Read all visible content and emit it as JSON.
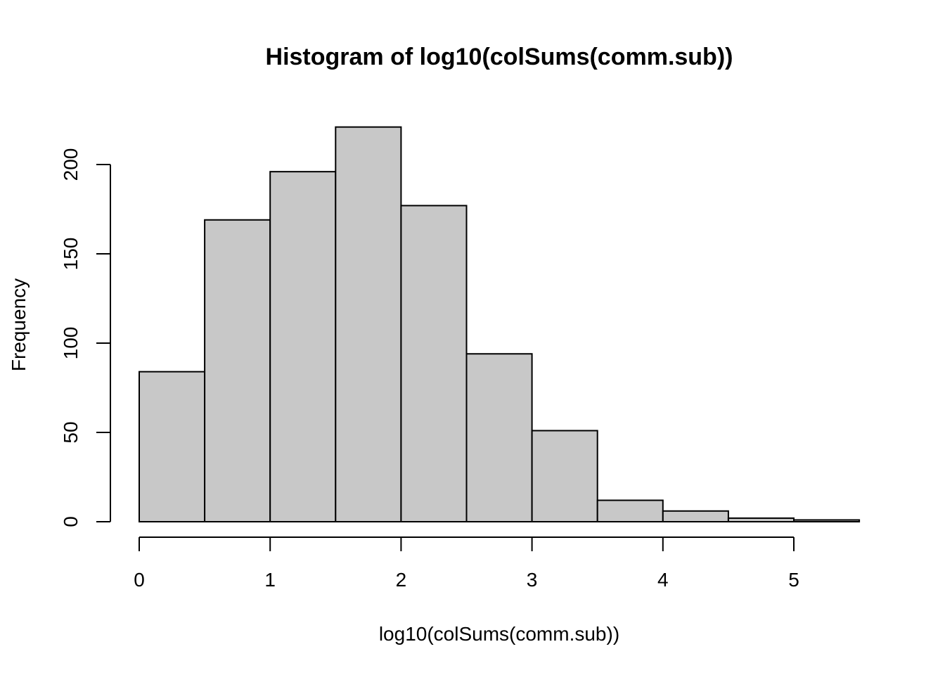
{
  "chart_data": {
    "type": "bar",
    "title": "Histogram of log10(colSums(comm.sub))",
    "xlabel": "log10(colSums(comm.sub))",
    "ylabel": "Frequency",
    "bins": [
      {
        "x0": 0.0,
        "x1": 0.5,
        "count": 84
      },
      {
        "x0": 0.5,
        "x1": 1.0,
        "count": 169
      },
      {
        "x0": 1.0,
        "x1": 1.5,
        "count": 196
      },
      {
        "x0": 1.5,
        "x1": 2.0,
        "count": 221
      },
      {
        "x0": 2.0,
        "x1": 2.5,
        "count": 177
      },
      {
        "x0": 2.5,
        "x1": 3.0,
        "count": 94
      },
      {
        "x0": 3.0,
        "x1": 3.5,
        "count": 51
      },
      {
        "x0": 3.5,
        "x1": 4.0,
        "count": 12
      },
      {
        "x0": 4.0,
        "x1": 4.5,
        "count": 6
      },
      {
        "x0": 4.5,
        "x1": 5.0,
        "count": 2
      },
      {
        "x0": 5.0,
        "x1": 5.5,
        "count": 1
      }
    ],
    "xlim": [
      0,
      5.5
    ],
    "ylim": [
      0,
      221
    ],
    "x_ticks": [
      0,
      1,
      2,
      3,
      4,
      5
    ],
    "x_tick_labels": [
      "0",
      "1",
      "2",
      "3",
      "4",
      "5"
    ],
    "y_ticks": [
      0,
      50,
      100,
      150,
      200
    ],
    "y_tick_labels": [
      "0",
      "50",
      "100",
      "150",
      "200"
    ],
    "bar_fill": "#c8c8c8",
    "bar_stroke": "#000000",
    "grid": false
  }
}
